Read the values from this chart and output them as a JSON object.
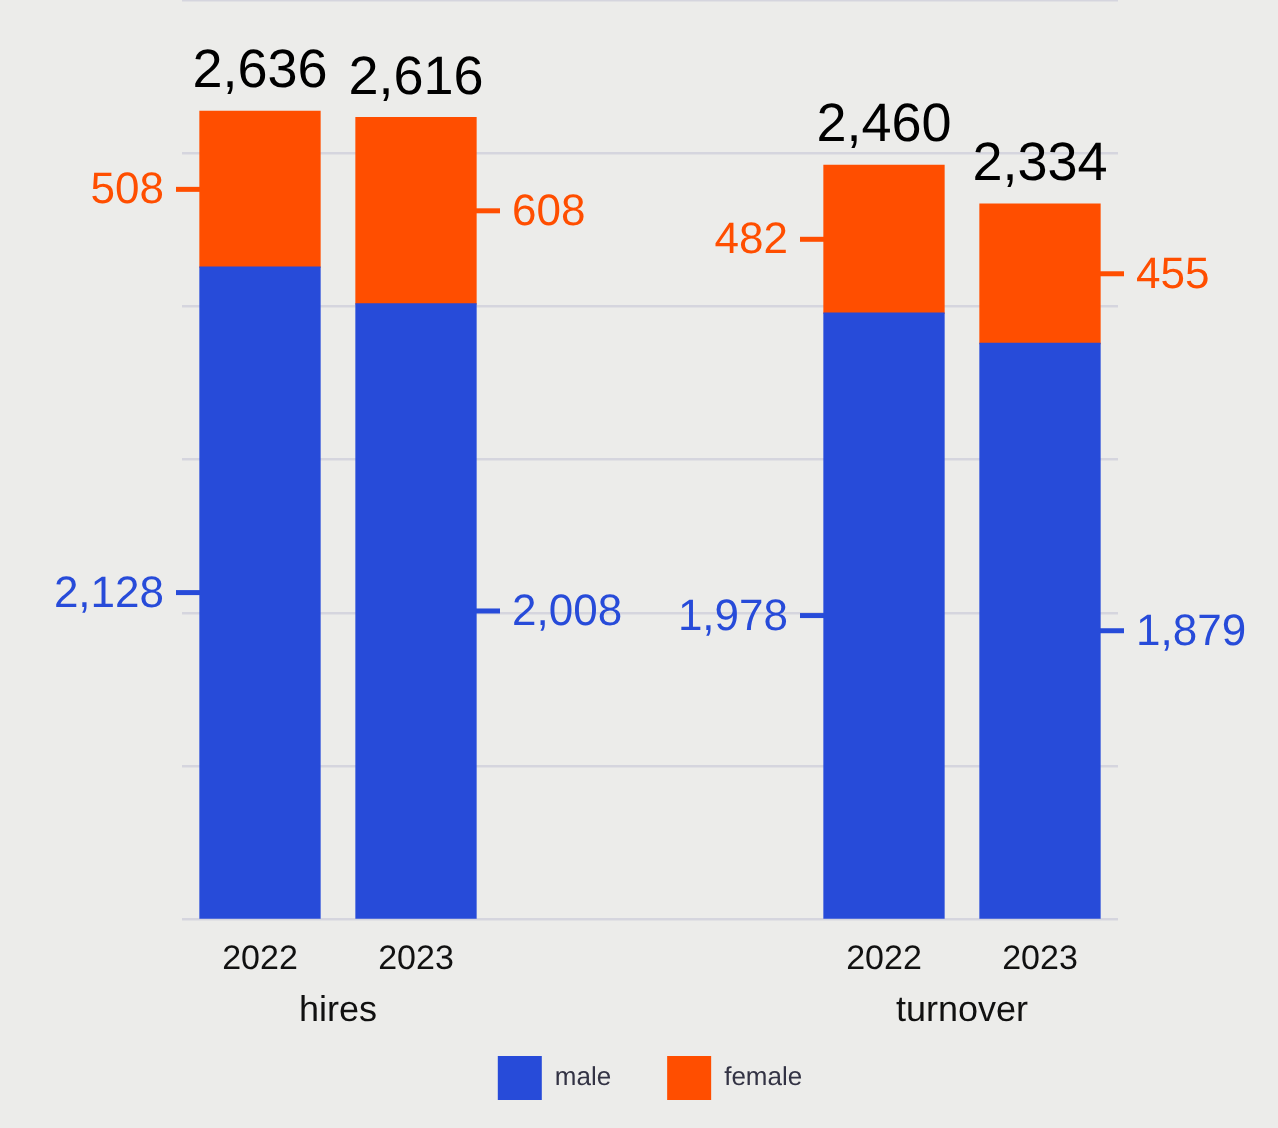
{
  "chart_data": {
    "type": "bar",
    "stacked": true,
    "categories": [
      "2022",
      "2023",
      null,
      null,
      "2022",
      "2023"
    ],
    "series": [
      {
        "name": "male",
        "color": "#274bd9",
        "values": [
          2128,
          2008,
          null,
          null,
          1978,
          1879
        ],
        "value_labels": [
          "2,128",
          "2,008",
          null,
          null,
          "1,978",
          "1,879"
        ]
      },
      {
        "name": "female",
        "color": "#ff4e00",
        "values": [
          508,
          608,
          null,
          null,
          482,
          455
        ],
        "value_labels": [
          "508",
          "608",
          null,
          null,
          "482",
          "455"
        ]
      }
    ],
    "totals": [
      "2,636",
      "2,616",
      null,
      null,
      "2,460",
      "2,334"
    ],
    "annotations": [
      "hires",
      "turnover"
    ],
    "ylim": [
      0,
      3000
    ],
    "yticks": [
      {
        "value": 0,
        "label": null
      },
      {
        "value": 500,
        "label": null
      },
      {
        "value": 1000,
        "label": null
      },
      {
        "value": 1500,
        "label": null
      },
      {
        "value": 2000,
        "label": null
      },
      {
        "value": 2500,
        "label": null
      },
      {
        "value": 3000,
        "label": null
      }
    ],
    "tick_labels": "x",
    "grid": "y",
    "legend": "bottom"
  }
}
